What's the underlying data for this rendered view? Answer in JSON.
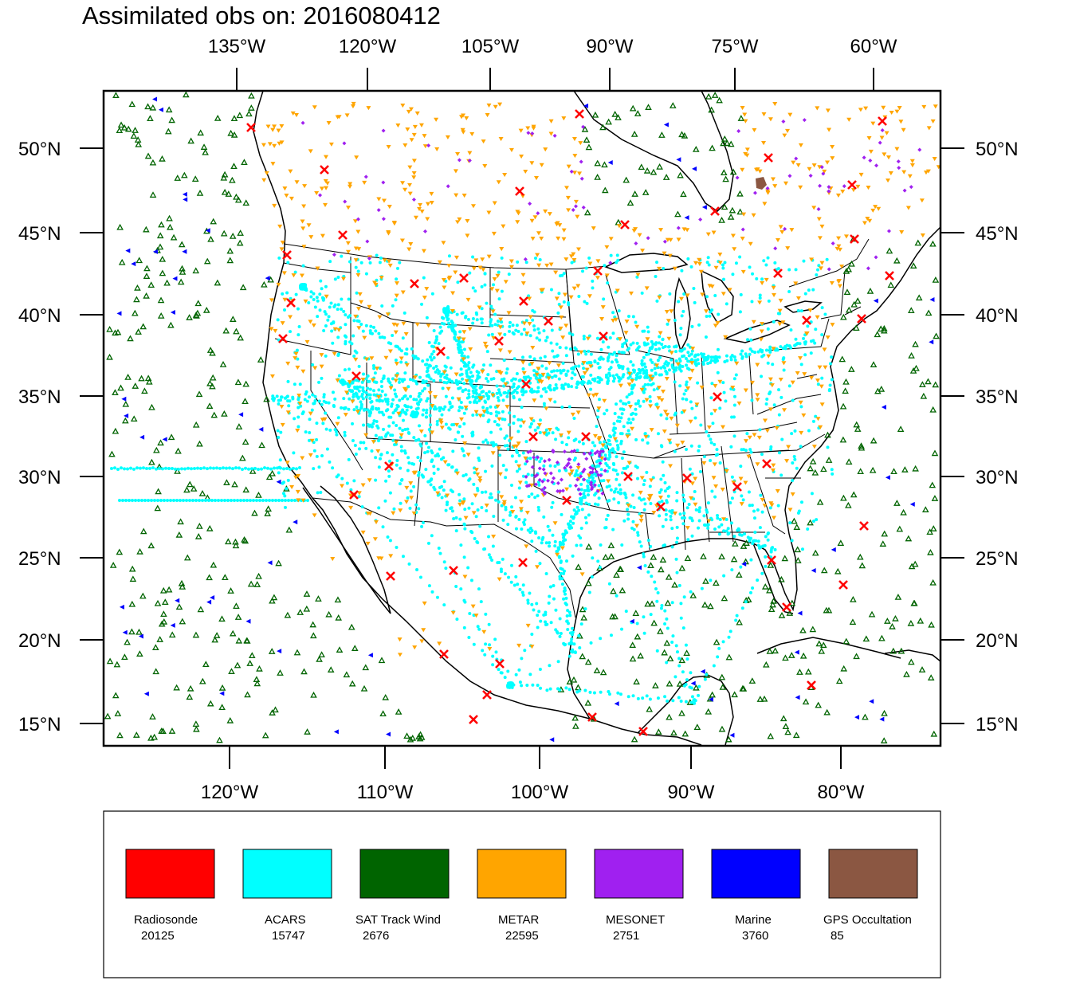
{
  "title": "Assimilated obs on: 2016080412",
  "map": {
    "top_axis_labels": [
      "135°W",
      "120°W",
      "105°W",
      "90°W",
      "75°W",
      "60°W"
    ],
    "bottom_axis_labels": [
      "120°W",
      "110°W",
      "100°W",
      "90°W",
      "80°W"
    ],
    "lat_labels": [
      "15°N",
      "20°N",
      "25°N",
      "30°N",
      "35°N",
      "40°N",
      "45°N",
      "50°N"
    ]
  },
  "legend": [
    {
      "name": "Radiosonde",
      "count": "20125",
      "color": "#ff0000"
    },
    {
      "name": "ACARS",
      "count": "15747",
      "color": "#00ffff"
    },
    {
      "name": "SAT Track Wind",
      "count": "2676",
      "color": "#006400"
    },
    {
      "name": "METAR",
      "count": "22595",
      "color": "#ffa500"
    },
    {
      "name": "MESONET",
      "count": "2751",
      "color": "#a020f0"
    },
    {
      "name": "Marine",
      "count": "3760",
      "color": "#0000ff"
    },
    {
      "name": "GPS Occultation",
      "count": "85",
      "color": "#8b5742"
    }
  ]
}
